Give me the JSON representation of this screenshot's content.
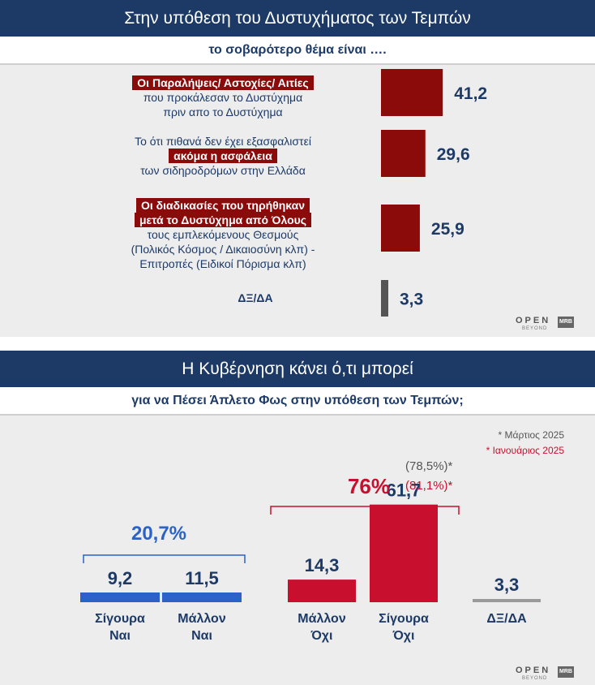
{
  "chart_data": [
    {
      "type": "bar",
      "orientation": "horizontal",
      "title": "Στην υπόθεση του Δυστυχήματος των Τεμπών",
      "subtitle": "το σοβαρότερο θέμα είναι ….",
      "categories": [
        "Οι Παραλήψεις/ Αστοχίες/ Αιτίες που προκάλεσαν το Δυστύχημα πριν απο το Δυστύχημα",
        "Το ότι πιθανά δεν έχει εξασφαλιστεί ακόμα η ασφάλεια των σιδηροδρόμων στην Ελλάδα",
        "Οι διαδικασίες που τηρήθηκαν μετά το Δυστύχημα από Όλους τους εμπλεκόμενους Θεσμούς (Πολικός Κόσμος / Δικαιοσύνη κλπ) - Επιτροπές (Ειδικοί Πόρισμα κλπ)",
        "ΔΞ/ΔΑ"
      ],
      "values": [
        41.2,
        29.6,
        25.9,
        3.3
      ],
      "value_labels": [
        "41,2",
        "29,6",
        "25,9",
        "3,3"
      ],
      "colors": [
        "#8b0a0a",
        "#8b0a0a",
        "#8b0a0a",
        "#555555"
      ],
      "grid": false
    },
    {
      "type": "bar",
      "title": "Η Κυβέρνηση κάνει ό,τι μπορεί",
      "subtitle": "για να Πέσει Άπλετο Φως στην υπόθεση των Τεμπών;",
      "categories": [
        "Σίγουρα Ναι",
        "Μάλλον Ναι",
        "Μάλλον Όχι",
        "Σίγουρα Όχι",
        "ΔΞ/ΔΑ"
      ],
      "values": [
        9.2,
        11.5,
        14.3,
        61.7,
        3.3
      ],
      "value_labels": [
        "9,2",
        "11,5",
        "14,3",
        "61,7",
        "3,3"
      ],
      "colors": [
        "#2a62c9",
        "#2a62c9",
        "#c8102e",
        "#c8102e",
        "#9a9a9a"
      ],
      "group_totals": [
        {
          "label": "20,7%",
          "value": 20.7
        },
        {
          "label": "76%",
          "value": 76,
          "previous": [
            {
              "label": "(78,5%)*",
              "value": 78.5,
              "color": "#555555"
            },
            {
              "label": "(81,1%)*",
              "value": 81.1,
              "color": "#c8102e"
            }
          ]
        }
      ],
      "legend": {
        "placement": "top-right",
        "items": [
          {
            "label": "* Μάρτιος 2025",
            "color": "#555555"
          },
          {
            "label": "* Ιανουάριος 2025",
            "color": "#c8102e"
          }
        ]
      },
      "grid": false
    }
  ],
  "panel1": {
    "title": "Στην υπόθεση του Δυστυχήματος των Τεμπών",
    "subtitle": "το σοβαρότερο θέμα είναι ….",
    "item1": {
      "hl1": "Οι Παραλήψεις/ Αστοχίες/ Αιτίες",
      "p1": "που προκάλεσαν το Δυστύχημα",
      "p2": "πριν απο το Δυστύχημα"
    },
    "item2": {
      "p1": "Το ότι πιθανά δεν έχει εξασφαλιστεί",
      "hl1": "ακόμα η ασφάλεια",
      "p2": "των σιδηροδρόμων στην Ελλάδα"
    },
    "item3": {
      "hl1": "Οι διαδικασίες που τηρήθηκαν",
      "hl2": "μετά το Δυστύχημα από Όλους",
      "p1": "τους εμπλεκόμενους Θεσμούς",
      "p2": "(Πολικός Κόσμος / Δικαιοσύνη κλπ) -",
      "p3": "Επιτροπές (Ειδικοί Πόρισμα κλπ)"
    },
    "item4": {
      "p1": "ΔΞ/ΔΑ"
    }
  },
  "panel2": {
    "title": "Η Κυβέρνηση κάνει ό,τι μπορεί",
    "subtitle": "για να Πέσει Άπλετο Φως στην υπόθεση των Τεμπών;",
    "cat_lines": [
      [
        "Σίγουρα",
        "Ναι"
      ],
      [
        "Μάλλον",
        "Ναι"
      ],
      [
        "Μάλλον",
        "Όχι"
      ],
      [
        "Σίγουρα",
        "Όχι"
      ],
      [
        "ΔΞ/ΔΑ"
      ]
    ]
  },
  "logo": {
    "brand": "OPEN",
    "tagline": "BEYOND",
    "pollster": "MRB"
  }
}
